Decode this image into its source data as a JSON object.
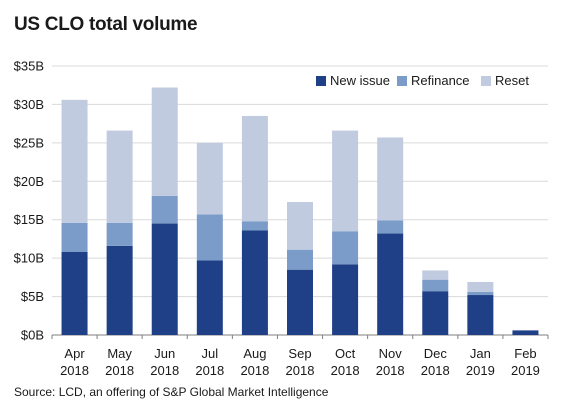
{
  "title": "US CLO total volume",
  "source": "Source: LCD, an offering of S&P Global Market Intelligence",
  "colors": {
    "new_issue": "#1f3f86",
    "refinance": "#7b9cc8",
    "reset": "#c0cbe0",
    "grid": "#d9d9d9",
    "axis": "#7f7f7f"
  },
  "legend": [
    "New issue",
    "Refinance",
    "Reset"
  ],
  "chart_data": {
    "type": "bar",
    "stacked": true,
    "categories": [
      [
        "Apr",
        "2018"
      ],
      [
        "May",
        "2018"
      ],
      [
        "Jun",
        "2018"
      ],
      [
        "Jul",
        "2018"
      ],
      [
        "Aug",
        "2018"
      ],
      [
        "Sep",
        "2018"
      ],
      [
        "Oct",
        "2018"
      ],
      [
        "Nov",
        "2018"
      ],
      [
        "Dec",
        "2018"
      ],
      [
        "Jan",
        "2019"
      ],
      [
        "Feb",
        "2019"
      ]
    ],
    "series": [
      {
        "name": "New issue",
        "values": [
          10.8,
          11.6,
          14.5,
          9.7,
          13.6,
          8.5,
          9.2,
          13.2,
          5.7,
          5.2,
          0.6
        ]
      },
      {
        "name": "Refinance",
        "values": [
          3.8,
          3.0,
          3.6,
          6.0,
          1.2,
          2.6,
          4.3,
          1.7,
          1.5,
          0.4,
          0.0
        ]
      },
      {
        "name": "Reset",
        "values": [
          16.0,
          12.0,
          14.1,
          9.3,
          13.7,
          6.2,
          13.1,
          10.8,
          1.2,
          1.3,
          0.0
        ]
      }
    ],
    "yticks": [
      "$0B",
      "$5B",
      "$10B",
      "$15B",
      "$20B",
      "$25B",
      "$30B",
      "$35B"
    ],
    "ylim": [
      0,
      35
    ],
    "grid": true,
    "legend_position": "top-right"
  }
}
